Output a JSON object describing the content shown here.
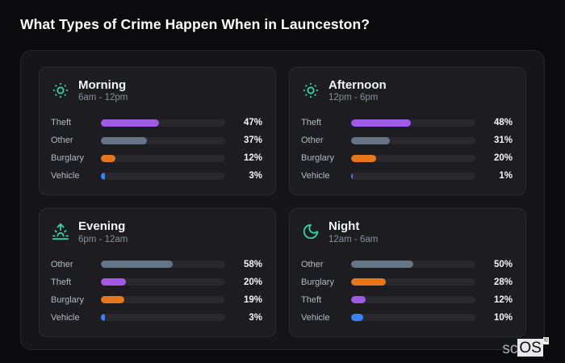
{
  "page": {
    "title": "What Types of Crime Happen When in Launceston?",
    "watermark": {
      "prefix": "sc",
      "boxed": "OS",
      "reg": "®"
    }
  },
  "colors": {
    "icon": "#35d49f",
    "theft": "#a15ae6",
    "other": "#667488",
    "burglary": "#e5761a",
    "vehicle": "#3b82f6",
    "track": "#28282d"
  },
  "chart_data": [
    {
      "type": "bar",
      "orientation": "horizontal",
      "title": "Morning",
      "subtitle": "6am - 12pm",
      "icon": "sun-icon",
      "xlim": [
        0,
        100
      ],
      "categories": [
        "Theft",
        "Other",
        "Burglary",
        "Vehicle"
      ],
      "values": [
        47,
        37,
        12,
        3
      ],
      "labels": [
        "47%",
        "37%",
        "12%",
        "3%"
      ]
    },
    {
      "type": "bar",
      "orientation": "horizontal",
      "title": "Afternoon",
      "subtitle": "12pm - 6pm",
      "icon": "sun-icon",
      "xlim": [
        0,
        100
      ],
      "categories": [
        "Theft",
        "Other",
        "Burglary",
        "Vehicle"
      ],
      "values": [
        48,
        31,
        20,
        1
      ],
      "labels": [
        "48%",
        "31%",
        "20%",
        "1%"
      ]
    },
    {
      "type": "bar",
      "orientation": "horizontal",
      "title": "Evening",
      "subtitle": "6pm - 12am",
      "icon": "sunrise-icon",
      "xlim": [
        0,
        100
      ],
      "categories": [
        "Other",
        "Theft",
        "Burglary",
        "Vehicle"
      ],
      "values": [
        58,
        20,
        19,
        3
      ],
      "labels": [
        "58%",
        "20%",
        "19%",
        "3%"
      ]
    },
    {
      "type": "bar",
      "orientation": "horizontal",
      "title": "Night",
      "subtitle": "12am - 6am",
      "icon": "moon-icon",
      "xlim": [
        0,
        100
      ],
      "categories": [
        "Other",
        "Burglary",
        "Theft",
        "Vehicle"
      ],
      "values": [
        50,
        28,
        12,
        10
      ],
      "labels": [
        "50%",
        "28%",
        "12%",
        "10%"
      ]
    }
  ]
}
